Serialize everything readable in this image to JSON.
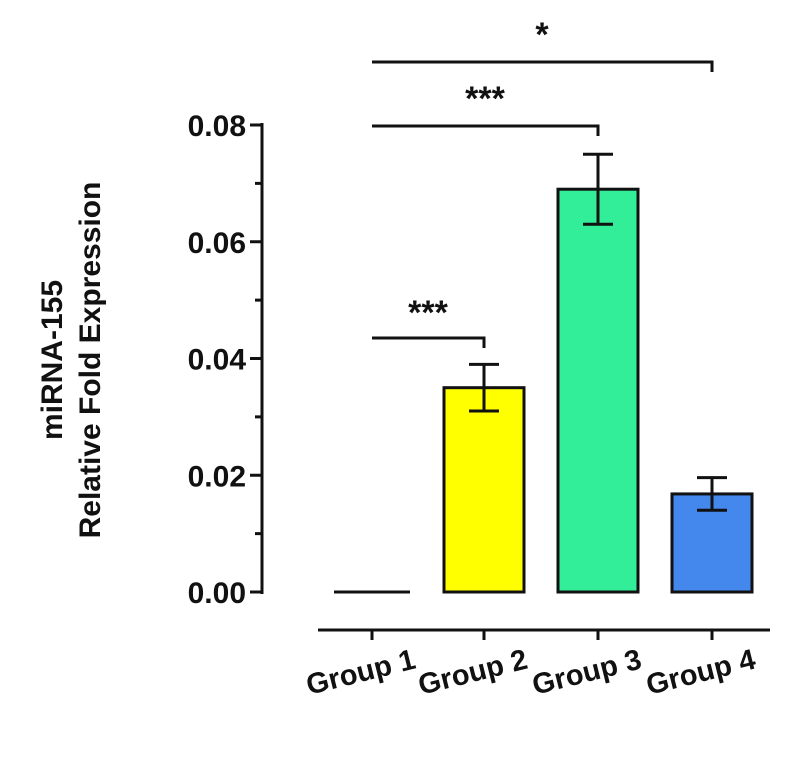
{
  "chart_data": {
    "type": "bar",
    "ylabel_lines": [
      "miRNA-155",
      "Relative Fold Expression"
    ],
    "xlabel": "",
    "ylim": [
      0,
      0.08
    ],
    "yticks": [
      "0.00",
      "0.02",
      "0.04",
      "0.06",
      "0.08"
    ],
    "categories": [
      "Group 1",
      "Group 2",
      "Group 3",
      "Group 4"
    ],
    "values": [
      0.0,
      0.035,
      0.069,
      0.0168
    ],
    "errors": [
      0.0,
      0.004,
      0.006,
      0.0028
    ],
    "colors": [
      "#ffffff",
      "#ffff00",
      "#33ee99",
      "#4488ee"
    ],
    "significance": [
      {
        "from": "Group 1",
        "to": "Group 2",
        "label": "***"
      },
      {
        "from": "Group 1",
        "to": "Group 3",
        "label": "***"
      },
      {
        "from": "Group 1",
        "to": "Group 4",
        "label": "*"
      }
    ],
    "grid": false,
    "legend": "none"
  }
}
